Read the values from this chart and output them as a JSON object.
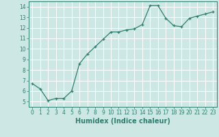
{
  "x": [
    0,
    1,
    2,
    3,
    4,
    5,
    6,
    7,
    8,
    9,
    10,
    11,
    12,
    13,
    14,
    15,
    16,
    17,
    18,
    19,
    20,
    21,
    22,
    23
  ],
  "y": [
    6.7,
    6.2,
    5.1,
    5.3,
    5.3,
    6.0,
    8.6,
    9.5,
    10.2,
    10.9,
    11.6,
    11.6,
    11.8,
    11.9,
    12.3,
    14.1,
    14.1,
    12.9,
    12.2,
    12.1,
    12.9,
    13.1,
    13.3,
    13.5
  ],
  "xlabel": "Humidex (Indice chaleur)",
  "bg_color": "#cde8e4",
  "line_color": "#2e7d6e",
  "grid_color": "#ffffff",
  "xlim": [
    -0.5,
    23.5
  ],
  "ylim": [
    4.5,
    14.5
  ],
  "yticks": [
    5,
    6,
    7,
    8,
    9,
    10,
    11,
    12,
    13,
    14
  ],
  "xticks": [
    0,
    1,
    2,
    3,
    4,
    5,
    6,
    7,
    8,
    9,
    10,
    11,
    12,
    13,
    14,
    15,
    16,
    17,
    18,
    19,
    20,
    21,
    22,
    23
  ],
  "tick_fontsize": 5.5,
  "label_fontsize": 7.0
}
